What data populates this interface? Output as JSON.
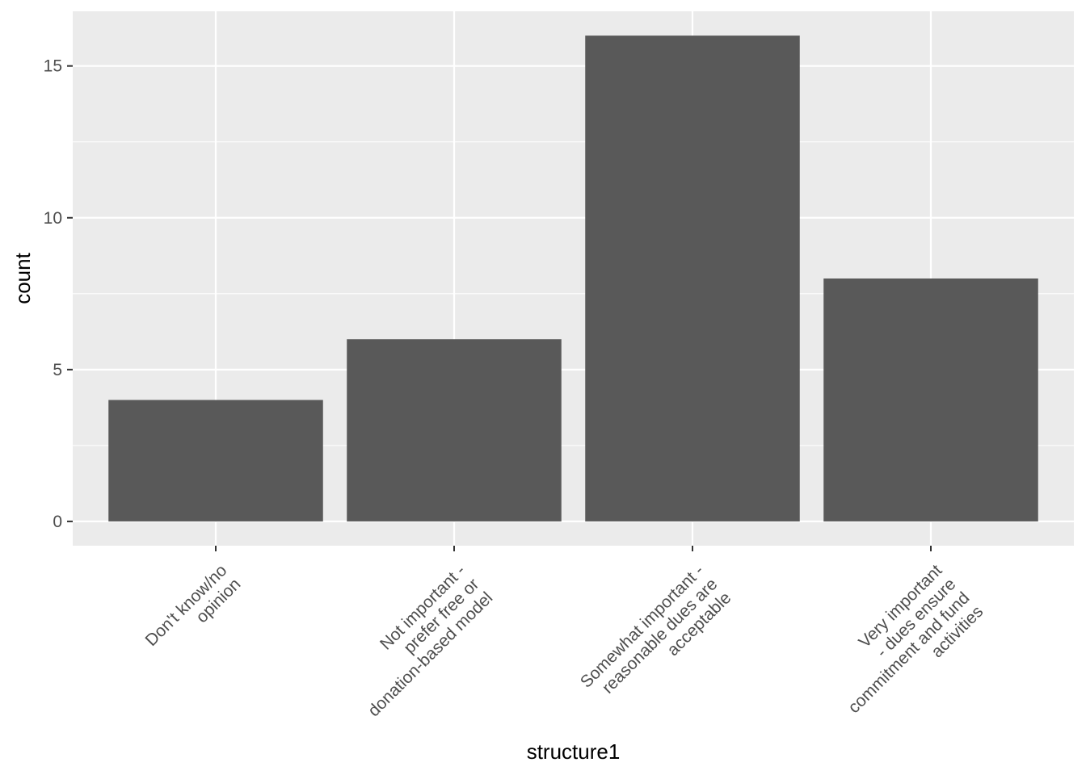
{
  "chart_data": {
    "type": "bar",
    "title": "",
    "xlabel": "structure1",
    "ylabel": "count",
    "categories": [
      [
        "Don't know/no",
        "opinion"
      ],
      [
        "Not important -",
        "prefer free or",
        "donation-based model"
      ],
      [
        "Somewhat important -",
        "reasonable dues are",
        "acceptable"
      ],
      [
        "Very important",
        "- dues ensure",
        "commitment and fund",
        "activities"
      ]
    ],
    "values": [
      4,
      6,
      16,
      8
    ],
    "ylim": [
      -0.8,
      16.8
    ],
    "yticks": [
      0,
      5,
      10,
      15
    ],
    "grid": true,
    "colors": {
      "panel": "#EBEBEB",
      "grid_major": "#FFFFFF",
      "bar": "#595959",
      "tick_text": "#4D4D4D",
      "axis_title": "#000000",
      "tick_mark": "#333333"
    }
  }
}
